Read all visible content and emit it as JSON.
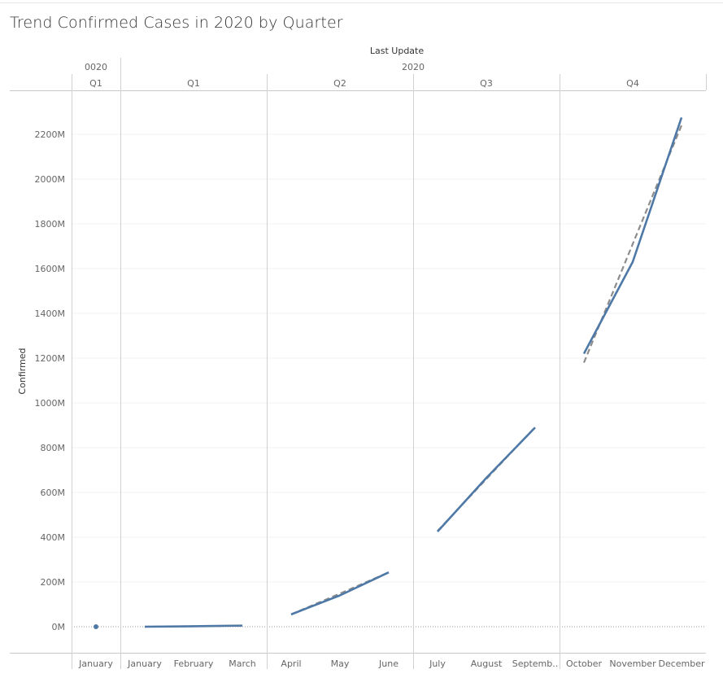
{
  "title": "Trend Confirmed Cases in 2020 by Quarter",
  "chart_data": {
    "type": "line",
    "title": "Trend Confirmed Cases in 2020 by Quarter",
    "ylabel": "Confirmed",
    "column_header": "Last Update",
    "ylim": [
      -120,
      2360
    ],
    "y_ticks": [
      0,
      200,
      400,
      600,
      800,
      1000,
      1200,
      1400,
      1600,
      1800,
      2000,
      2200
    ],
    "y_tick_labels": [
      "0M",
      "200M",
      "400M",
      "600M",
      "800M",
      "1000M",
      "1200M",
      "1400M",
      "1600M",
      "1800M",
      "2000M",
      "2200M"
    ],
    "y_unit_note": "values in millions",
    "groups": [
      {
        "year": "0020",
        "quarter": "Q1",
        "months": [
          "January"
        ],
        "values": [
          0
        ],
        "trend": [
          0
        ]
      },
      {
        "year": "2020",
        "quarter": "Q1",
        "months": [
          "January",
          "February",
          "March"
        ],
        "values": [
          0,
          2,
          5
        ],
        "trend": [
          0,
          2,
          5
        ]
      },
      {
        "year": "2020",
        "quarter": "Q2",
        "months": [
          "April",
          "May",
          "June"
        ],
        "values": [
          55,
          140,
          243
        ],
        "trend": [
          55,
          148,
          243
        ]
      },
      {
        "year": "2020",
        "quarter": "Q3",
        "months": [
          "July",
          "August",
          "Septemb.."
        ],
        "values": [
          425,
          665,
          890
        ],
        "trend": [
          428,
          660,
          892
        ]
      },
      {
        "year": "2020",
        "quarter": "Q4",
        "months": [
          "October",
          "November",
          "December"
        ],
        "values": [
          1220,
          1630,
          2275
        ],
        "trend": [
          1180,
          1710,
          2240
        ]
      }
    ],
    "year_headers": [
      "0020",
      "2020"
    ],
    "series_color": "#4e79a7",
    "trend_color": "#8c8c8c",
    "grid": true,
    "legend": "none"
  }
}
